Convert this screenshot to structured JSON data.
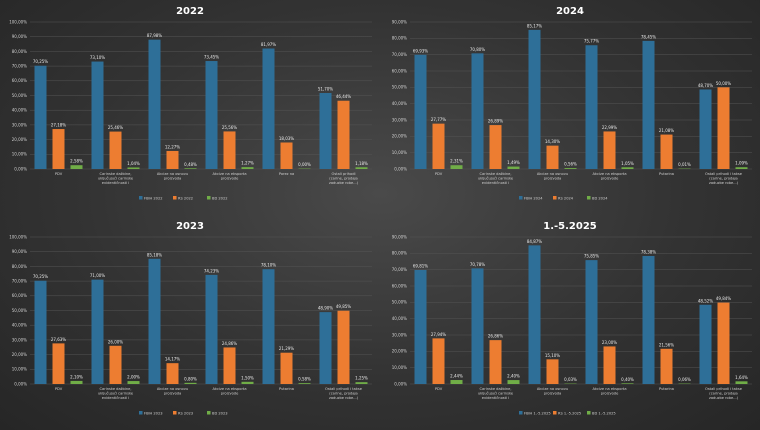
{
  "chart_data": [
    {
      "type": "bar",
      "title": "2022",
      "categories": [
        "PDV",
        "Carinske dažbine, uključujući carinske evidentičnosti i posebne dažbine",
        "Akcize na osnovu proizvoda",
        "Akcize na eksporta proizvode",
        "Porez na",
        "Ostali prihodi i takse (carine, prodaja zaduzbe robe...)"
      ],
      "category_display": [
        "PDV",
        "Carinske dažbine, uključujući carinske evidentičnosti i posebne dažbine",
        "Akcize na osnovu proizvoda",
        "Akcize na eksporta proizvode",
        "Porez na",
        "Ostali prihodi (carine, prodaja zaduzbe robe...)"
      ],
      "series": [
        {
          "name": "FBiH 2022",
          "color": "#2e6f98",
          "values": [
            70.25,
            73.1,
            87.98,
            73.45,
            81.97,
            51.7
          ],
          "labels": [
            "70,25%",
            "73,10%",
            "87,98%",
            "73,45%",
            "81,97%",
            "51,70%"
          ]
        },
        {
          "name": "RS 2022",
          "color": "#ed7d31",
          "values": [
            27.18,
            25.46,
            12.27,
            25.56,
            18.03,
            46.44
          ],
          "labels": [
            "27,18%",
            "25,46%",
            "12,27%",
            "25,56%",
            "18,03%",
            "46,44%"
          ]
        },
        {
          "name": "BD 2022",
          "color": "#70ad47",
          "values": [
            2.58,
            1.04,
            0.48,
            1.27,
            0.0,
            1.18
          ],
          "labels": [
            "2,58%",
            "1,04%",
            "0,48%",
            "1,27%",
            "0,00%",
            "1,18%"
          ]
        }
      ],
      "ylim": [
        0,
        100
      ],
      "yticks": [
        "0,00%",
        "10,00%",
        "20,00%",
        "30,00%",
        "40,00%",
        "50,00%",
        "60,00%",
        "70,00%",
        "80,00%",
        "90,00%",
        "100,00%"
      ],
      "xlabel": "",
      "ylabel": "",
      "legend": "bottom",
      "grid": true
    },
    {
      "type": "bar",
      "title": "2024",
      "categories": [
        "PDV",
        "Carinske dažbine, uključujući carinske evidentičnosti i posebne dažbine",
        "Akcize na osnovu proizvoda",
        "Akcize na eksporta proizvode",
        "Putarina",
        "Ostali prihodi i takse (carine, prodaja zaduzbe robe...)"
      ],
      "category_display": [
        "PDV",
        "Carinske dažbine, uključujući carinske evidentičnosti i posebne dažbine",
        "Akcize na osnovu proizvoda",
        "Akcize na eksporta proizvode",
        "Putarina",
        "Ostali prihodi i takse (carine, prodaja zaduzbe robe...)"
      ],
      "series": [
        {
          "name": "FBiH 2024",
          "color": "#2e6f98",
          "values": [
            69.93,
            70.8,
            85.17,
            75.77,
            78.45,
            48.7
          ],
          "labels": [
            "69,93%",
            "70,80%",
            "85,17%",
            "75,77%",
            "78,45%",
            "48,70%"
          ]
        },
        {
          "name": "RS 2024",
          "color": "#ed7d31",
          "values": [
            27.77,
            26.89,
            14.3,
            22.99,
            21.08,
            50.0
          ],
          "labels": [
            "27,77%",
            "26,89%",
            "14,30%",
            "22,99%",
            "21,08%",
            "50,00%"
          ]
        },
        {
          "name": "BD 2024",
          "color": "#70ad47",
          "values": [
            2.31,
            1.49,
            0.56,
            1.05,
            0.01,
            1.09
          ],
          "labels": [
            "2,31%",
            "1,49%",
            "0,56%",
            "1,05%",
            "0,01%",
            "1,09%"
          ]
        }
      ],
      "ylim": [
        0,
        90
      ],
      "yticks": [
        "0,00%",
        "10,00%",
        "20,00%",
        "30,00%",
        "40,00%",
        "50,00%",
        "60,00%",
        "70,00%",
        "80,00%",
        "90,00%"
      ],
      "xlabel": "",
      "ylabel": "",
      "legend": "bottom",
      "grid": true
    },
    {
      "type": "bar",
      "title": "2023",
      "categories": [
        "PDV",
        "Carinske dažbine, uključujući carinske evidentičnosti i posebne dažbine",
        "Akcize na osnovu proizvoda",
        "Akcize na eksporta proizvode",
        "Putarina",
        "Ostali prihodi i takse (carine, prodaja zaduzbe robe...)"
      ],
      "category_display": [
        "PDV",
        "Carinske dažbine, uključujući carinske evidentičnosti i posebne dažbine",
        "Akcize na osnovu proizvoda",
        "Akcize na eksporta proizvode",
        "Putarina",
        "Ostali prihodi i takse (carine, prodaja zaduzbe robe...)"
      ],
      "series": [
        {
          "name": "FBiH 2023",
          "color": "#2e6f98",
          "values": [
            70.25,
            71.0,
            85.18,
            74.23,
            78.1,
            48.9
          ],
          "labels": [
            "70,25%",
            "71,00%",
            "85,18%",
            "74,23%",
            "78,10%",
            "48,90%"
          ]
        },
        {
          "name": "RS 2023",
          "color": "#ed7d31",
          "values": [
            27.63,
            26.0,
            14.17,
            24.86,
            21.29,
            49.85
          ],
          "labels": [
            "27,63%",
            "26,00%",
            "14,17%",
            "24,86%",
            "21,29%",
            "49,85%"
          ]
        },
        {
          "name": "BD 2023",
          "color": "#70ad47",
          "values": [
            2.1,
            2.0,
            0.8,
            1.5,
            0.58,
            1.25
          ],
          "labels": [
            "2,10%",
            "2,00%",
            "0,80%",
            "1,50%",
            "0,58%",
            "1,25%"
          ]
        }
      ],
      "ylim": [
        0,
        100
      ],
      "yticks": [
        "0,00%",
        "10,00%",
        "20,00%",
        "30,00%",
        "40,00%",
        "50,00%",
        "60,00%",
        "70,00%",
        "80,00%",
        "90,00%",
        "100,00%"
      ],
      "xlabel": "",
      "ylabel": "",
      "legend": "bottom",
      "grid": true
    },
    {
      "type": "bar",
      "title": "1.-5.2025",
      "categories": [
        "PDV",
        "Carinske dažbine, uključujući carinske evidentičnosti i posebne dažbine",
        "Akcize na osnovu proizvoda",
        "Akcize na eksporta proizvode",
        "Putarina",
        "Ostali prihodi i takse (carine, prodaja zaduzbe robe...)"
      ],
      "category_display": [
        "PDV",
        "Carinske dažbine, uključujući carinske evidentičnosti i posebne dažbine",
        "Akcize na osnovu proizvoda",
        "Akcize na eksporta proizvode",
        "Putarina",
        "Ostali prihodi i takse (carine, prodaja zaduzbe robe...)"
      ],
      "series": [
        {
          "name": "FBiH 1.-5.2025",
          "color": "#2e6f98",
          "values": [
            69.81,
            70.78,
            84.87,
            75.85,
            78.38,
            48.52
          ],
          "labels": [
            "69,81%",
            "70,78%",
            "84,87%",
            "75,85%",
            "78,38%",
            "48,52%"
          ]
        },
        {
          "name": "RS 1.-5.2025",
          "color": "#ed7d31",
          "values": [
            27.94,
            26.86,
            15.1,
            23.0,
            21.56,
            49.84
          ],
          "labels": [
            "27,94%",
            "26,86%",
            "15,10%",
            "23,00%",
            "21,56%",
            "49,84%"
          ]
        },
        {
          "name": "BD 1.-5.2025",
          "color": "#70ad47",
          "values": [
            2.44,
            2.4,
            0.03,
            0.4,
            0.06,
            1.64
          ],
          "labels": [
            "2,44%",
            "2,40%",
            "0,03%",
            "0,40%",
            "0,06%",
            "1,64%"
          ]
        }
      ],
      "ylim": [
        0,
        90
      ],
      "yticks": [
        "0,00%",
        "10,00%",
        "20,00%",
        "30,00%",
        "40,00%",
        "50,00%",
        "60,00%",
        "70,00%",
        "80,00%",
        "90,00%"
      ],
      "xlabel": "",
      "ylabel": "",
      "legend": "bottom",
      "grid": true
    }
  ]
}
